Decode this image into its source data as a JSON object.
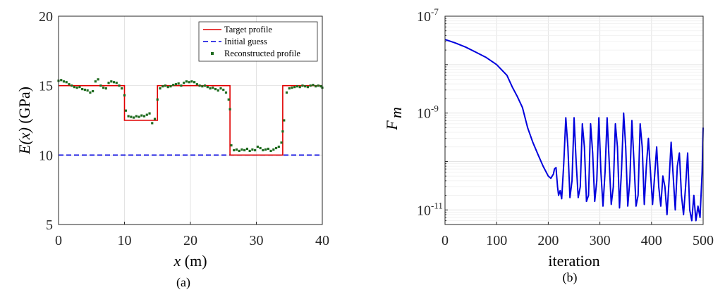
{
  "chart_data": [
    {
      "type": "line",
      "panel_label": "(a)",
      "xlabel_var": "x",
      "xlabel_unit": " (m)",
      "ylabel_var": "E(x)",
      "ylabel_unit": " (GPa)",
      "xlim": [
        0,
        40
      ],
      "ylim": [
        5,
        20
      ],
      "xticks": [
        0,
        10,
        20,
        30,
        40
      ],
      "yticks": [
        5,
        10,
        15,
        20
      ],
      "grid": true,
      "legend_position": "top-right",
      "colors": {
        "target": "#e00000",
        "initial": "#0000dd",
        "reconstructed": "#1f6b1f"
      },
      "series": [
        {
          "name": "Target profile",
          "style": "solid",
          "x": [
            0,
            10,
            10,
            15,
            15,
            26,
            26,
            34,
            34,
            40
          ],
          "y": [
            15,
            15,
            12.5,
            12.5,
            15,
            15,
            10,
            10,
            15,
            15
          ]
        },
        {
          "name": "Initial guess",
          "style": "dashed",
          "x": [
            0,
            40
          ],
          "y": [
            10,
            10
          ]
        },
        {
          "name": "Reconstructed profile",
          "style": "markers",
          "x": [
            0,
            0.4,
            0.8,
            1.2,
            1.6,
            2,
            2.4,
            2.8,
            3.2,
            3.6,
            4,
            4.4,
            4.8,
            5.2,
            5.6,
            6,
            6.4,
            6.8,
            7.2,
            7.6,
            8,
            8.4,
            8.8,
            9.2,
            9.6,
            10,
            10.2,
            10.6,
            11,
            11.4,
            11.8,
            12.2,
            12.6,
            13,
            13.4,
            13.8,
            14.2,
            14.6,
            15,
            15.4,
            15.8,
            16.2,
            16.6,
            17,
            17.4,
            17.8,
            18.2,
            18.6,
            19,
            19.4,
            19.8,
            20.2,
            20.6,
            21,
            21.4,
            21.8,
            22.2,
            22.6,
            23,
            23.4,
            23.8,
            24.2,
            24.6,
            25,
            25.4,
            25.8,
            26,
            26.2,
            26.6,
            27,
            27.4,
            27.8,
            28.2,
            28.6,
            29,
            29.4,
            29.8,
            30.2,
            30.6,
            31,
            31.4,
            31.8,
            32.2,
            32.6,
            33,
            33.4,
            33.8,
            34,
            34.2,
            34.6,
            35,
            35.4,
            35.8,
            36.2,
            36.6,
            37,
            37.4,
            37.8,
            38.2,
            38.6,
            39,
            39.4,
            39.8,
            40
          ],
          "y": [
            15.35,
            15.4,
            15.3,
            15.25,
            15.1,
            15.0,
            14.9,
            14.85,
            14.9,
            14.75,
            14.7,
            14.65,
            14.5,
            14.6,
            15.3,
            15.45,
            15.0,
            14.85,
            14.8,
            15.2,
            15.3,
            15.25,
            15.2,
            15.0,
            14.8,
            14.3,
            13.2,
            12.8,
            12.75,
            12.7,
            12.8,
            12.75,
            12.85,
            12.8,
            12.9,
            13.0,
            12.3,
            12.6,
            14.0,
            14.8,
            14.95,
            15.0,
            14.9,
            14.95,
            15.05,
            15.1,
            15.15,
            15.0,
            15.2,
            15.3,
            15.25,
            15.3,
            15.25,
            15.1,
            15.0,
            14.95,
            15.0,
            14.9,
            14.8,
            14.85,
            14.75,
            14.65,
            14.8,
            14.7,
            14.5,
            14.0,
            13.3,
            10.7,
            10.35,
            10.4,
            10.3,
            10.4,
            10.35,
            10.45,
            10.3,
            10.4,
            10.35,
            10.6,
            10.5,
            10.35,
            10.4,
            10.45,
            10.3,
            10.4,
            10.5,
            10.6,
            10.9,
            11.7,
            12.5,
            14.5,
            14.8,
            14.85,
            14.9,
            14.95,
            14.9,
            15.0,
            14.95,
            14.9,
            15.0,
            15.05,
            14.95,
            15.0,
            14.95,
            14.85
          ]
        }
      ]
    },
    {
      "type": "line",
      "panel_label": "(b)",
      "xlabel": "iteration",
      "ylabel_main": "F",
      "ylabel_sub": "m",
      "yscale": "log",
      "xlim": [
        0,
        500
      ],
      "ylim": [
        5e-12,
        1e-07
      ],
      "xticks": [
        0,
        100,
        200,
        300,
        400,
        500
      ],
      "ytick_base": "10",
      "ytick_exponents": [
        "-7",
        "-9",
        "-11"
      ],
      "grid": true,
      "colors": {
        "line": "#0000dd"
      },
      "series": [
        {
          "name": "",
          "x": [
            0,
            20,
            40,
            60,
            80,
            100,
            120,
            130,
            140,
            150,
            160,
            170,
            180,
            190,
            200,
            205,
            210,
            212,
            215,
            218,
            220,
            223,
            226,
            230,
            234,
            238,
            242,
            246,
            250,
            254,
            258,
            262,
            266,
            270,
            274,
            278,
            282,
            286,
            290,
            294,
            298,
            302,
            306,
            310,
            314,
            318,
            322,
            326,
            330,
            334,
            338,
            342,
            346,
            350,
            354,
            358,
            362,
            366,
            370,
            374,
            378,
            382,
            386,
            390,
            394,
            398,
            402,
            406,
            410,
            414,
            418,
            422,
            426,
            430,
            434,
            438,
            442,
            446,
            450,
            454,
            458,
            462,
            466,
            470,
            474,
            478,
            482,
            486,
            490,
            494,
            498,
            500
          ],
          "y": [
            3.3e-08,
            2.8e-08,
            2.3e-08,
            1.8e-08,
            1.4e-08,
            1e-08,
            6e-09,
            3.5e-09,
            2.2e-09,
            1.3e-09,
            5e-10,
            2.5e-10,
            1.4e-10,
            8e-11,
            5e-11,
            4.5e-11,
            5.5e-11,
            7e-11,
            7.5e-11,
            3e-11,
            2e-11,
            2.5e-11,
            1.7e-11,
            9e-11,
            8e-10,
            2e-10,
            1.8e-11,
            4e-11,
            8e-10,
            1e-10,
            1.8e-11,
            3e-11,
            6e-10,
            2e-10,
            1.5e-11,
            2e-11,
            6e-10,
            1.5e-10,
            1.5e-11,
            4e-11,
            8e-10,
            6e-11,
            1.2e-11,
            6e-11,
            8e-10,
            1e-10,
            1.3e-11,
            3e-11,
            6e-10,
            2e-10,
            1.1e-11,
            7e-11,
            1e-09,
            2e-10,
            1.2e-11,
            4e-11,
            7e-10,
            1e-10,
            1.2e-11,
            2e-11,
            6e-10,
            2e-10,
            1.3e-11,
            8e-11,
            3e-10,
            6e-11,
            1.3e-11,
            5e-11,
            2e-10,
            3e-11,
            1.2e-11,
            5e-11,
            3e-11,
            8e-12,
            4e-11,
            2.5e-10,
            5e-11,
            1e-11,
            8e-11,
            1.5e-10,
            2e-11,
            8e-12,
            3e-11,
            1.5e-10,
            1e-11,
            6e-12,
            2e-11,
            6e-12,
            1.2e-11,
            7e-12,
            6e-11,
            5e-10
          ]
        }
      ]
    }
  ]
}
